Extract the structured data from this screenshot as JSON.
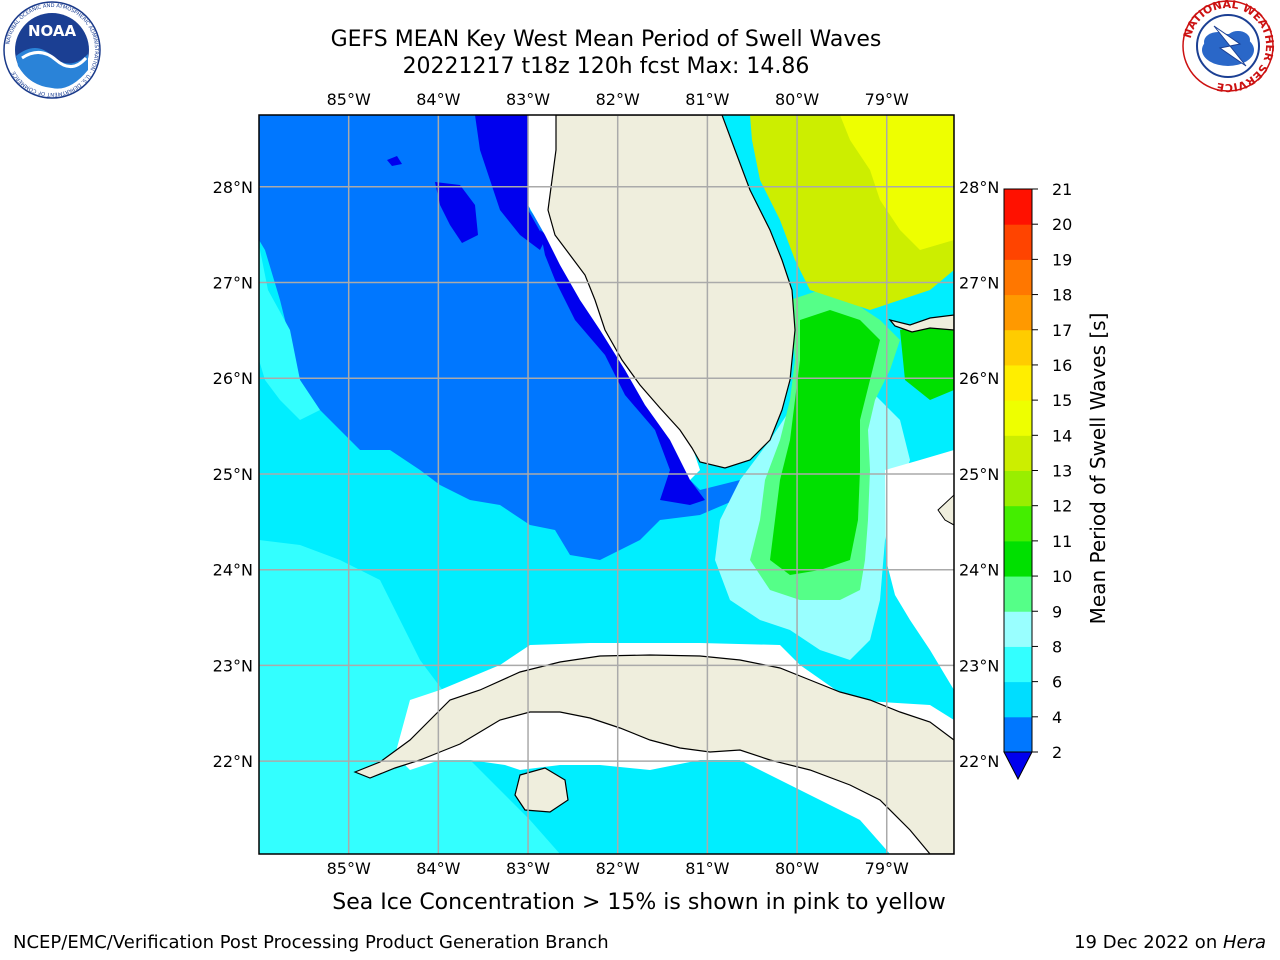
{
  "header": {
    "title_line1": "GEFS MEAN Key West Mean Period of Swell Waves",
    "title_line2": "20221217 t18z 120h fcst   Max: 14.86"
  },
  "logos": {
    "noaa": {
      "label": "NOAA",
      "ring_text": "NATIONAL OCEANIC AND ATMOSPHERIC ADMINISTRATION · U.S. DEPARTMENT OF COMMERCE"
    },
    "nws": {
      "ring_text": "NATIONAL WEATHER SERVICE"
    }
  },
  "map": {
    "lon_labels": [
      "85°W",
      "84°W",
      "83°W",
      "82°W",
      "81°W",
      "80°W",
      "79°W"
    ],
    "lat_labels_left": [
      "28°N",
      "27°N",
      "26°N",
      "25°N",
      "24°N",
      "23°N",
      "22°N"
    ],
    "lat_labels_right": [
      "28°N",
      "27°N",
      "26°N",
      "25°N",
      "24°N",
      "23°N",
      "22°N"
    ],
    "lon_values": [
      -85,
      -84,
      -83,
      -82,
      -81,
      -80,
      -79
    ],
    "lat_values": [
      28,
      27,
      26,
      25,
      24,
      23,
      22
    ],
    "extent": {
      "lon_min": -86,
      "lon_max": -78.25,
      "lat_min": 21.03,
      "lat_max": 28.75
    },
    "land_color": "#efeedd",
    "missing_color": "#ffffff"
  },
  "colorbar": {
    "label": "Mean Period of Swell Waves [s]",
    "ticks": [
      "2",
      "4",
      "6",
      "8",
      "9",
      "10",
      "11",
      "12",
      "13",
      "14",
      "15",
      "16",
      "17",
      "18",
      "19",
      "20",
      "21"
    ],
    "colors": [
      "#0077ff",
      "#00ddff",
      "#33ffff",
      "#99ffff",
      "#55ff88",
      "#00e000",
      "#44ee00",
      "#99ee00",
      "#ccee00",
      "#eeff00",
      "#ffee00",
      "#ffcc00",
      "#ff9900",
      "#ff7700",
      "#ff4400",
      "#ff1100"
    ],
    "under_color": "#0000ee"
  },
  "chart_data": {
    "type": "heatmap",
    "title": "GEFS MEAN Key West Mean Period of Swell Waves",
    "subtitle": "20221217 t18z 120h fcst   Max: 14.86",
    "variable": "Mean Period of Swell Waves [s]",
    "max": 14.86,
    "x_ticks": [
      "85°W",
      "84°W",
      "83°W",
      "82°W",
      "81°W",
      "80°W",
      "79°W"
    ],
    "y_ticks": [
      "28°N",
      "27°N",
      "26°N",
      "25°N",
      "24°N",
      "23°N",
      "22°N"
    ],
    "levels": [
      2,
      4,
      6,
      8,
      9,
      10,
      11,
      12,
      13,
      14,
      15,
      16,
      17,
      18,
      19,
      20,
      21
    ]
  },
  "subtitle": "Sea Ice Concentration > 15% is shown in pink to yellow",
  "footer": {
    "left": "NCEP/EMC/Verification Post Processing Product Generation Branch",
    "right_prefix": "19 Dec 2022 on ",
    "right_host": "Hera"
  }
}
